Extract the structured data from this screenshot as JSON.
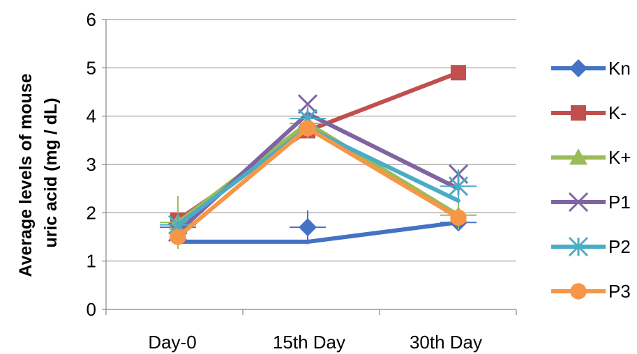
{
  "chart_data": {
    "type": "line",
    "title": "",
    "xlabel": "",
    "ylabel_lines": [
      "Average levels of mouse",
      "uric acid (mg / dL)"
    ],
    "categories": [
      "Day-0",
      "15th Day",
      "30th Day"
    ],
    "ylim": [
      0,
      6
    ],
    "yticks": [
      "0",
      "1",
      "2",
      "3",
      "4",
      "5",
      "6"
    ],
    "grid": true,
    "legend_position": "right",
    "error_bars": true,
    "series": [
      {
        "name": "Kn",
        "values": [
          1.4,
          1.4,
          1.8
        ],
        "points": [
          1.7,
          1.7,
          1.8
        ],
        "errors": [
          0.3,
          0.35,
          0.15
        ],
        "color": "#4472C4",
        "marker": "diamond"
      },
      {
        "name": "K-",
        "values": [
          1.85,
          3.7,
          4.9
        ],
        "points": [
          1.85,
          3.7,
          4.9
        ],
        "errors": [
          0,
          0,
          0
        ],
        "color": "#C0504D",
        "marker": "square"
      },
      {
        "name": "K+",
        "values": [
          1.8,
          3.85,
          1.95
        ],
        "points": [
          1.8,
          3.85,
          1.95
        ],
        "errors": [
          0.55,
          0.3,
          0.3
        ],
        "color": "#9BBB59",
        "marker": "triangle"
      },
      {
        "name": "P1",
        "values": [
          1.6,
          4.05,
          2.5
        ],
        "points": [
          1.6,
          4.25,
          2.8
        ],
        "errors": [
          0,
          0,
          0
        ],
        "color": "#8064A2",
        "marker": "x"
      },
      {
        "name": "P2",
        "values": [
          1.75,
          3.75,
          2.25
        ],
        "points": [
          1.75,
          3.95,
          2.55
        ],
        "errors": [
          0.25,
          0.25,
          0.35
        ],
        "color": "#4BACC6",
        "marker": "star"
      },
      {
        "name": "P3",
        "values": [
          1.5,
          3.75,
          1.9
        ],
        "points": [
          1.5,
          3.75,
          1.9
        ],
        "errors": [
          0,
          0,
          0
        ],
        "color": "#F79646",
        "marker": "circle"
      }
    ]
  }
}
